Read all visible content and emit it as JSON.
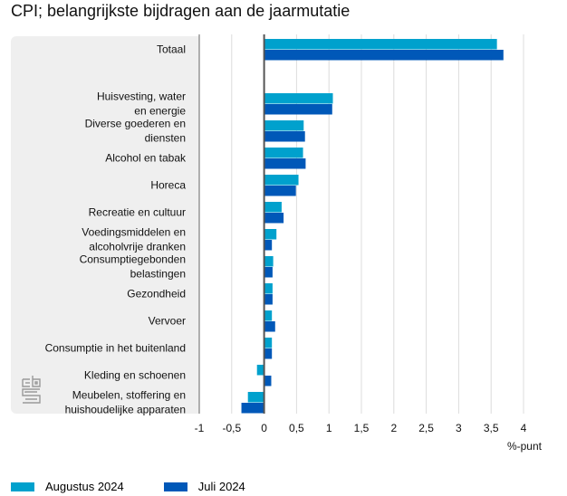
{
  "chart_data": {
    "type": "bar",
    "orientation": "horizontal",
    "title": "CPI; belangrijkste bijdragen aan de jaarmutatie",
    "xlabel": "%-punt",
    "ylabel": "",
    "xlim": [
      -1,
      4
    ],
    "xticks": [
      -1,
      -0.5,
      0,
      0.5,
      1,
      1.5,
      2,
      2.5,
      3,
      3.5,
      4
    ],
    "xtick_labels": [
      "-1",
      "-0,5",
      "0",
      "0,5",
      "1",
      "1,5",
      "2",
      "2,5",
      "3",
      "3,5",
      "4"
    ],
    "grid": true,
    "legend_position": "bottom-left",
    "categories": [
      [
        "Totaal"
      ],
      null,
      [
        "Huisvesting, water",
        "en energie"
      ],
      [
        "Diverse goederen en",
        "diensten"
      ],
      [
        "Alcohol en tabak"
      ],
      [
        "Horeca"
      ],
      [
        "Recreatie en cultuur"
      ],
      [
        "Voedingsmiddelen en",
        "alcoholvrije dranken"
      ],
      [
        "Consumptiegebonden",
        "belastingen"
      ],
      [
        "Gezondheid"
      ],
      [
        "Vervoer"
      ],
      [
        "Consumptie in het buitenland"
      ],
      [
        "Kleding en schoenen"
      ],
      [
        "Meubelen, stoffering en",
        "huishoudelijke apparaten"
      ]
    ],
    "series": [
      {
        "name": "Augustus 2024",
        "color": "#00a1cd",
        "values": [
          3.59,
          null,
          1.06,
          0.61,
          0.6,
          0.53,
          0.27,
          0.19,
          0.14,
          0.13,
          0.12,
          0.12,
          -0.11,
          -0.25
        ]
      },
      {
        "name": "Juli 2024",
        "color": "#0058b8",
        "values": [
          3.69,
          null,
          1.05,
          0.63,
          0.64,
          0.49,
          0.3,
          0.12,
          0.13,
          0.13,
          0.17,
          0.12,
          0.11,
          -0.35
        ]
      }
    ]
  },
  "legend": {
    "items": [
      {
        "label": "Augustus 2024",
        "color": "#00a1cd"
      },
      {
        "label": "Juli 2024",
        "color": "#0058b8"
      }
    ]
  },
  "logo": {
    "icon": "cbs-logo-icon"
  }
}
